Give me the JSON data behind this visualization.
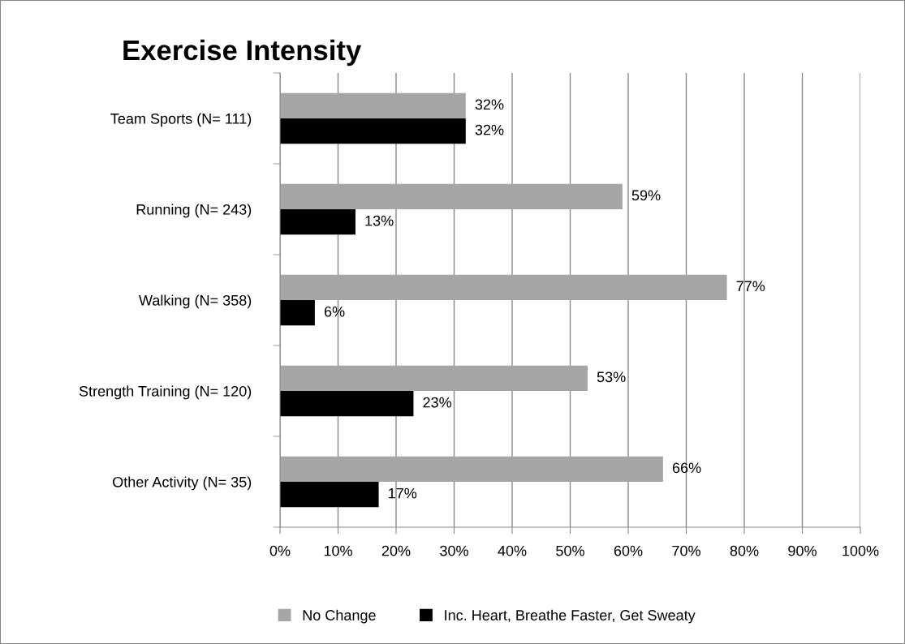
{
  "chart_data": {
    "type": "bar",
    "orientation": "horizontal",
    "title": "Exercise Intensity",
    "categories": [
      "Team Sports (N= 111)",
      "Running (N= 243)",
      "Walking (N= 358)",
      "Strength Training (N= 120)",
      "Other Activity (N= 35)"
    ],
    "series": [
      {
        "name": "No Change",
        "color": "#a6a6a6",
        "values": [
          32,
          59,
          77,
          53,
          66
        ],
        "value_labels": [
          "32%",
          "59%",
          "77%",
          "53%",
          "66%"
        ]
      },
      {
        "name": "Inc. Heart, Breathe Faster, Get Sweaty",
        "color": "#000000",
        "values": [
          32,
          13,
          6,
          23,
          17
        ],
        "value_labels": [
          "32%",
          "13%",
          "6%",
          "23%",
          "17%"
        ]
      }
    ],
    "xlim": [
      0,
      100
    ],
    "xticks": [
      {
        "value": 0,
        "label": "0%"
      },
      {
        "value": 10,
        "label": "10%"
      },
      {
        "value": 20,
        "label": "20%"
      },
      {
        "value": 30,
        "label": "30%"
      },
      {
        "value": 40,
        "label": "40%"
      },
      {
        "value": 50,
        "label": "50%"
      },
      {
        "value": 60,
        "label": "60%"
      },
      {
        "value": 70,
        "label": "70%"
      },
      {
        "value": 80,
        "label": "80%"
      },
      {
        "value": 90,
        "label": "90%"
      },
      {
        "value": 100,
        "label": "100%"
      }
    ],
    "grid": "x",
    "legend": "bottom"
  }
}
